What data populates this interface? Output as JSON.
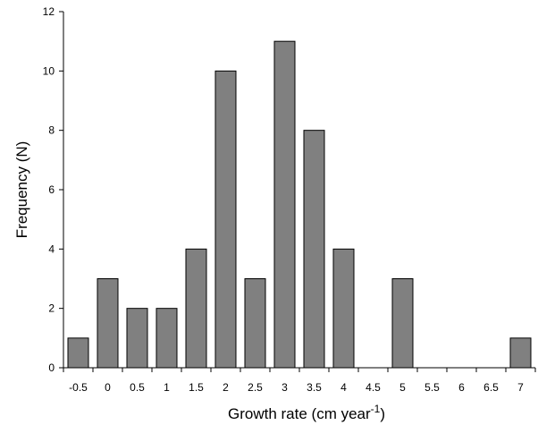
{
  "chart_data": {
    "type": "bar",
    "categories": [
      "-0.5",
      "0",
      "0.5",
      "1",
      "1.5",
      "2",
      "2.5",
      "3",
      "3.5",
      "4",
      "4.5",
      "5",
      "5.5",
      "6",
      "6.5",
      "7"
    ],
    "values": [
      1,
      3,
      2,
      2,
      4,
      10,
      3,
      11,
      8,
      4,
      0,
      3,
      0,
      0,
      0,
      1
    ],
    "xlabel": "Growth rate (cm year",
    "xlabel_superscript": "-1",
    "xlabel_close": ")",
    "ylabel": "Frequency (N)",
    "ylim": [
      0,
      12
    ],
    "yticks": [
      "0",
      "2",
      "4",
      "6",
      "8",
      "10",
      "12"
    ],
    "grid": false,
    "bar_color": "#808080"
  }
}
